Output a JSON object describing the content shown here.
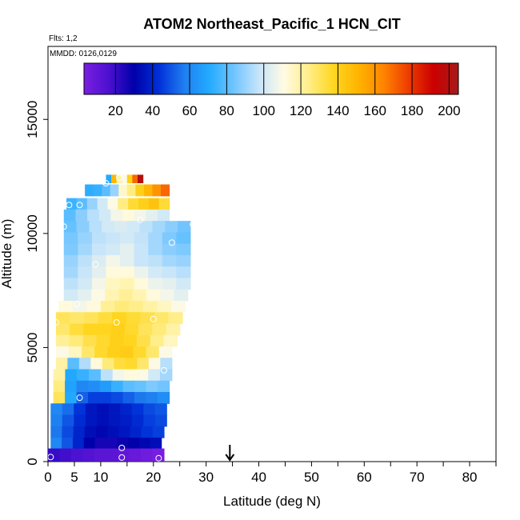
{
  "chart_data": {
    "type": "heatmap",
    "title": "ATOM2 Northeast_Pacific_1 HCN_CIT",
    "flights_label": "Flts: 1,2",
    "dates_label": "MMDD: 0126,0129",
    "xlabel": "Latitude (deg N)",
    "ylabel": "Altitude (m)",
    "xlim": [
      0,
      85
    ],
    "ylim": [
      0,
      18200
    ],
    "x_ticks": [
      0,
      5,
      10,
      20,
      30,
      40,
      50,
      60,
      70,
      80
    ],
    "y_ticks": [
      0,
      5000,
      10000,
      15000
    ],
    "colorbar": {
      "range": [
        3,
        205
      ],
      "ticks": [
        20,
        40,
        60,
        80,
        100,
        120,
        140,
        160,
        180,
        200
      ],
      "colors": [
        "#7a1fe0",
        "#4b10d0",
        "#0000aa",
        "#0030d8",
        "#1f7df0",
        "#22aaff",
        "#70c4ff",
        "#c6e4fa",
        "#fffbe4",
        "#ffee88",
        "#ffd620",
        "#ffb400",
        "#ff8400",
        "#ee3c00",
        "#cc0000",
        "#a61a1a"
      ]
    },
    "marker_latitude": 34.5,
    "profile_rows": [
      {
        "alt": 12400,
        "h": 350,
        "lat_min": 11,
        "lat_max": 18,
        "values": [
          70,
          150,
          120,
          110,
          140,
          170,
          200
        ]
      },
      {
        "alt": 11900,
        "h": 500,
        "lat_min": 7,
        "lat_max": 23,
        "values": [
          72,
          74,
          80,
          90,
          115,
          125,
          140,
          150,
          160,
          170
        ]
      },
      {
        "alt": 11300,
        "h": 500,
        "lat_min": 3.5,
        "lat_max": 23,
        "values": [
          75,
          80,
          90,
          100,
          110,
          125,
          135,
          140,
          145,
          135
        ]
      },
      {
        "alt": 10800,
        "h": 500,
        "lat_min": 3,
        "lat_max": 23,
        "values": [
          80,
          88,
          95,
          100,
          108,
          112,
          108,
          104,
          100
        ]
      },
      {
        "alt": 10300,
        "h": 500,
        "lat_min": 3,
        "lat_max": 27,
        "values": [
          82,
          88,
          95,
          100,
          102,
          100,
          96,
          92,
          88,
          84
        ]
      },
      {
        "alt": 9800,
        "h": 500,
        "lat_min": 3,
        "lat_max": 27,
        "values": [
          85,
          90,
          96,
          98,
          100,
          97,
          92,
          86,
          82
        ]
      },
      {
        "alt": 9300,
        "h": 500,
        "lat_min": 3,
        "lat_max": 27,
        "values": [
          86,
          92,
          98,
          100,
          104,
          98,
          92,
          88,
          86
        ]
      },
      {
        "alt": 8800,
        "h": 500,
        "lat_min": 3,
        "lat_max": 27,
        "values": [
          90,
          96,
          102,
          108,
          104,
          98,
          96,
          92,
          90
        ]
      },
      {
        "alt": 8300,
        "h": 500,
        "lat_min": 3,
        "lat_max": 27,
        "values": [
          92,
          98,
          104,
          112,
          112,
          106,
          100,
          98,
          95
        ]
      },
      {
        "alt": 7800,
        "h": 500,
        "lat_min": 3,
        "lat_max": 27,
        "values": [
          96,
          100,
          108,
          116,
          118,
          112,
          106,
          104,
          100
        ]
      },
      {
        "alt": 7300,
        "h": 500,
        "lat_min": 3,
        "lat_max": 26.5,
        "values": [
          100,
          104,
          110,
          118,
          122,
          118,
          112,
          108,
          104
        ]
      },
      {
        "alt": 6800,
        "h": 500,
        "lat_min": 2,
        "lat_max": 26,
        "values": [
          112,
          108,
          112,
          122,
          126,
          124,
          120,
          116,
          110
        ]
      },
      {
        "alt": 6300,
        "h": 500,
        "lat_min": 1.5,
        "lat_max": 25.5,
        "values": [
          130,
          128,
          130,
          134,
          138,
          135,
          132,
          128,
          124
        ]
      },
      {
        "alt": 5800,
        "h": 500,
        "lat_min": 1.5,
        "lat_max": 25,
        "values": [
          128,
          134,
          138,
          138,
          140,
          136,
          130,
          126,
          120
        ]
      },
      {
        "alt": 5300,
        "h": 500,
        "lat_min": 1.5,
        "lat_max": 24.5,
        "values": [
          122,
          126,
          132,
          136,
          140,
          138,
          132,
          124,
          116
        ]
      },
      {
        "alt": 4800,
        "h": 500,
        "lat_min": 1.5,
        "lat_max": 23.5,
        "values": [
          110,
          116,
          128,
          136,
          140,
          142,
          136,
          128,
          110
        ]
      },
      {
        "alt": 4300,
        "h": 500,
        "lat_min": 1.5,
        "lat_max": 23.5,
        "values": [
          120,
          80,
          94,
          112,
          126,
          134,
          136,
          128,
          110,
          95
        ]
      },
      {
        "alt": 3800,
        "h": 500,
        "lat_min": 1,
        "lat_max": 23.5,
        "values": [
          120,
          70,
          74,
          80,
          96,
          108,
          112,
          110,
          100,
          92
        ]
      },
      {
        "alt": 3300,
        "h": 500,
        "lat_min": 1,
        "lat_max": 23,
        "values": [
          125,
          68,
          60,
          62,
          66,
          74,
          80,
          82,
          86,
          84
        ]
      },
      {
        "alt": 2800,
        "h": 500,
        "lat_min": 1,
        "lat_max": 23,
        "values": [
          130,
          70,
          52,
          46,
          46,
          48,
          52,
          56,
          58,
          62
        ]
      },
      {
        "alt": 2300,
        "h": 500,
        "lat_min": 0.5,
        "lat_max": 22.5,
        "values": [
          60,
          54,
          44,
          36,
          34,
          36,
          40,
          44,
          48,
          50
        ]
      },
      {
        "alt": 1800,
        "h": 500,
        "lat_min": 0.5,
        "lat_max": 22.5,
        "values": [
          58,
          50,
          42,
          36,
          34,
          36,
          38,
          42,
          46,
          48
        ]
      },
      {
        "alt": 1300,
        "h": 500,
        "lat_min": 0.5,
        "lat_max": 22,
        "values": [
          56,
          48,
          40,
          34,
          32,
          34,
          36,
          40,
          44,
          46
        ]
      },
      {
        "alt": 800,
        "h": 500,
        "lat_min": 0.5,
        "lat_max": 21.5,
        "values": [
          60,
          50,
          40,
          30,
          26,
          26,
          28,
          30,
          32,
          34
        ]
      },
      {
        "alt": 300,
        "h": 550,
        "lat_min": 0,
        "lat_max": 22,
        "values": [
          20,
          18,
          16,
          14,
          12,
          12,
          10,
          8,
          6,
          4
        ]
      }
    ],
    "sample_points": [
      {
        "x": 13.5,
        "y": 12450
      },
      {
        "x": 11,
        "y": 12200
      },
      {
        "x": 4,
        "y": 11250
      },
      {
        "x": 6,
        "y": 11250
      },
      {
        "x": 17.5,
        "y": 10600
      },
      {
        "x": 3,
        "y": 10300
      },
      {
        "x": 27.5,
        "y": 10400
      },
      {
        "x": 23.5,
        "y": 9600
      },
      {
        "x": 9,
        "y": 8650
      },
      {
        "x": 5.5,
        "y": 6900
      },
      {
        "x": 13,
        "y": 6100
      },
      {
        "x": 20,
        "y": 6250
      },
      {
        "x": 1.5,
        "y": 6100
      },
      {
        "x": 22,
        "y": 4000
      },
      {
        "x": 6,
        "y": 2800
      },
      {
        "x": 14,
        "y": 600
      },
      {
        "x": 0.5,
        "y": 200
      },
      {
        "x": 14,
        "y": 180
      },
      {
        "x": 21,
        "y": 150
      }
    ]
  }
}
